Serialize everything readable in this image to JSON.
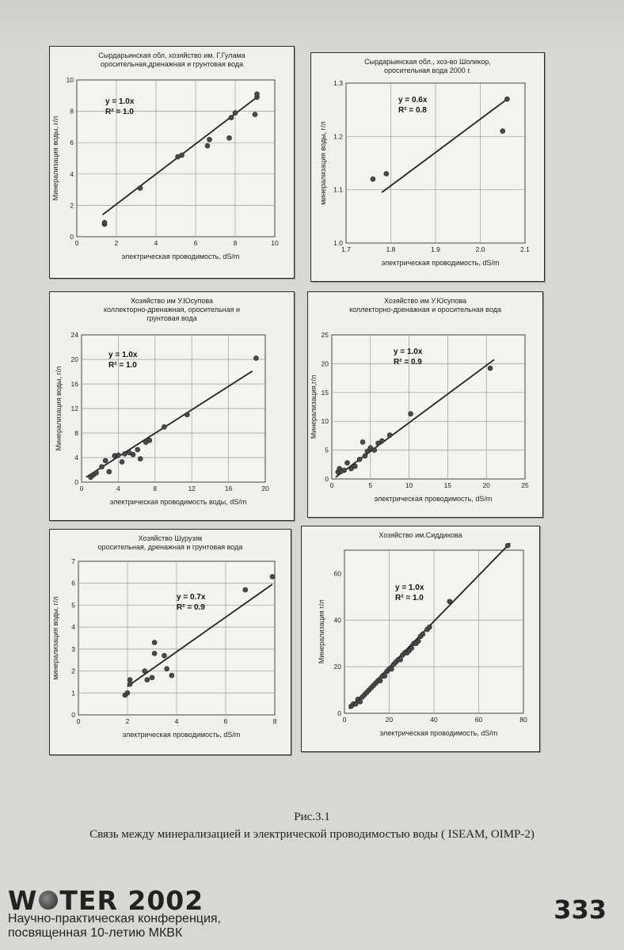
{
  "caption": {
    "number": "Рис.3.1",
    "text": "Связь между минерализацией и электрической проводимостью воды ( ISEAM, OIMP-2)"
  },
  "footer": {
    "logo_left": "W",
    "logo_right": "TER 2002",
    "line1": "Научно-практическая конференция,",
    "line2": "посвященная 10-летию МКВК",
    "page_number": "333"
  },
  "chart_data": [
    {
      "type": "scatter",
      "title": [
        "Сырдарьинская обл, хозяйство им. Г.Гулама",
        "оросительная,дренажная и грунтовая вода"
      ],
      "xlabel": "электрическая проводимость, dS/m",
      "ylabel": "Минерализация воды, г/л",
      "xlim": [
        0,
        10
      ],
      "ylim": [
        0,
        10
      ],
      "xticks": [
        "0",
        "2",
        "4",
        "6",
        "8",
        "10"
      ],
      "yticks": [
        "0",
        "2",
        "4",
        "6",
        "8",
        "10"
      ],
      "grid": true,
      "equation": "y = 1.0x",
      "r2": "R² = 1.0",
      "trendline": [
        [
          1.3,
          1.4
        ],
        [
          9.1,
          8.9
        ]
      ],
      "points": [
        [
          1.4,
          0.8
        ],
        [
          1.4,
          0.9
        ],
        [
          3.2,
          3.1
        ],
        [
          5.1,
          5.1
        ],
        [
          5.3,
          5.2
        ],
        [
          6.6,
          5.8
        ],
        [
          6.7,
          6.2
        ],
        [
          7.7,
          6.3
        ],
        [
          7.8,
          7.6
        ],
        [
          8.0,
          7.9
        ],
        [
          9.0,
          7.8
        ],
        [
          9.1,
          8.9
        ],
        [
          9.1,
          9.1
        ]
      ]
    },
    {
      "type": "scatter",
      "title": [
        "Сырдарьинская обл., хоз-во Шоликор,",
        "оросительная вода 2000 г."
      ],
      "xlabel": "электрическая проводимость, dS/m",
      "ylabel": "минерализация воды, г/л",
      "xlim": [
        1.7,
        2.1
      ],
      "ylim": [
        1.0,
        1.3
      ],
      "xticks": [
        "1.7",
        "1.8",
        "1.9",
        "2.0",
        "2.1"
      ],
      "yticks": [
        "1.0",
        "1.1",
        "1.2",
        "1.3"
      ],
      "grid": true,
      "equation": "y = 0.6x",
      "r2": "R² = 0.8",
      "trendline": [
        [
          1.78,
          1.095
        ],
        [
          2.06,
          1.27
        ]
      ],
      "points": [
        [
          1.76,
          1.12
        ],
        [
          1.79,
          1.13
        ],
        [
          2.05,
          1.21
        ],
        [
          2.06,
          1.27
        ]
      ]
    },
    {
      "type": "scatter",
      "title": [
        "Хозяйство им У.Юсупова",
        "коллекторно-дренажная, оросительная и",
        "грунтовая вода"
      ],
      "xlabel": "электрическая проводимость воды, dS/m",
      "ylabel": "Минерализация воды, г/л",
      "xlim": [
        0,
        20
      ],
      "ylim": [
        0,
        24
      ],
      "xticks": [
        "0",
        "4",
        "8",
        "12",
        "16",
        "20"
      ],
      "yticks": [
        "0",
        "4",
        "8",
        "12",
        "16",
        "20",
        "24"
      ],
      "grid": true,
      "equation": "y = 1.0x",
      "r2": "R² = 1.0",
      "trendline": [
        [
          0.5,
          0.8
        ],
        [
          18.6,
          18.1
        ]
      ],
      "points": [
        [
          1.0,
          0.8
        ],
        [
          1.3,
          1.2
        ],
        [
          1.6,
          1.5
        ],
        [
          2.2,
          2.5
        ],
        [
          2.6,
          3.5
        ],
        [
          3.0,
          1.7
        ],
        [
          3.6,
          4.3
        ],
        [
          4.0,
          4.4
        ],
        [
          4.4,
          3.3
        ],
        [
          4.7,
          4.6
        ],
        [
          5.2,
          4.8
        ],
        [
          5.6,
          4.5
        ],
        [
          6.1,
          5.3
        ],
        [
          6.4,
          3.8
        ],
        [
          7.0,
          6.5
        ],
        [
          7.4,
          6.8
        ],
        [
          9.0,
          9.0
        ],
        [
          11.5,
          11.0
        ],
        [
          19.0,
          20.2
        ]
      ]
    },
    {
      "type": "scatter",
      "title": [
        "Хозяйство им У.Юсупова",
        "коллекторно-дренажная и оросительная вода"
      ],
      "xlabel": "электрическая проводимость, dS/m",
      "ylabel": "Минерализация,г/л",
      "xlim": [
        0,
        25
      ],
      "ylim": [
        0,
        25
      ],
      "xticks": [
        "0",
        "5",
        "10",
        "15",
        "20",
        "25"
      ],
      "yticks": [
        "0",
        "5",
        "10",
        "15",
        "20",
        "25"
      ],
      "grid": true,
      "equation": "y = 1.0x",
      "r2": "R² = 0.9",
      "trendline": [
        [
          0.5,
          0.3
        ],
        [
          21.0,
          20.7
        ]
      ],
      "points": [
        [
          0.8,
          1.2
        ],
        [
          1.0,
          1.8
        ],
        [
          1.2,
          1.3
        ],
        [
          1.6,
          1.5
        ],
        [
          2.0,
          2.8
        ],
        [
          2.5,
          1.8
        ],
        [
          3.0,
          2.2
        ],
        [
          3.6,
          3.4
        ],
        [
          4.0,
          6.4
        ],
        [
          4.3,
          4.0
        ],
        [
          4.6,
          4.8
        ],
        [
          5.0,
          5.4
        ],
        [
          5.5,
          5.0
        ],
        [
          6.0,
          6.2
        ],
        [
          6.5,
          6.6
        ],
        [
          7.5,
          7.6
        ],
        [
          10.2,
          11.3
        ],
        [
          20.5,
          19.2
        ]
      ]
    },
    {
      "type": "scatter",
      "title": [
        "Хозяйство Шурузяк",
        "оросительная, дренажная и грунтовая вода"
      ],
      "xlabel": "электрическая проводимость, dS/m",
      "ylabel": "минерализация воды, г/л",
      "xlim": [
        0,
        8
      ],
      "ylim": [
        0,
        7
      ],
      "xticks": [
        "0",
        "2",
        "4",
        "6",
        "8"
      ],
      "yticks": [
        "0",
        "1",
        "2",
        "3",
        "4",
        "5",
        "6",
        "7"
      ],
      "grid": true,
      "equation": "y = 0.7x",
      "r2": "R² = 0.9",
      "trendline": [
        [
          2.0,
          1.3
        ],
        [
          7.9,
          5.95
        ]
      ],
      "points": [
        [
          1.9,
          0.9
        ],
        [
          2.0,
          1.0
        ],
        [
          2.1,
          1.4
        ],
        [
          2.1,
          1.6
        ],
        [
          2.7,
          2.0
        ],
        [
          2.8,
          1.6
        ],
        [
          3.0,
          1.7
        ],
        [
          3.1,
          2.8
        ],
        [
          3.1,
          3.3
        ],
        [
          3.5,
          2.7
        ],
        [
          3.6,
          2.1
        ],
        [
          3.8,
          1.8
        ],
        [
          6.8,
          5.7
        ],
        [
          7.9,
          6.3
        ]
      ]
    },
    {
      "type": "scatter",
      "title": [
        "Хозяйство им.Сиддикова"
      ],
      "xlabel": "электрическая проводимость, dS/m",
      "ylabel": "Минерализация г/л",
      "xlim": [
        0,
        80
      ],
      "ylim": [
        0,
        70
      ],
      "xticks": [
        "0",
        "20",
        "40",
        "60",
        "80"
      ],
      "yticks": [
        "0",
        "20",
        "40",
        "60"
      ],
      "grid": true,
      "equation": "y = 1.0x",
      "r2": "R² = 1.0",
      "trendline": [
        [
          2,
          2
        ],
        [
          74,
          73
        ]
      ],
      "points": [
        [
          3,
          3
        ],
        [
          4,
          4
        ],
        [
          5,
          4
        ],
        [
          6,
          6
        ],
        [
          7,
          5
        ],
        [
          8,
          7
        ],
        [
          9,
          8
        ],
        [
          10,
          9
        ],
        [
          11,
          10
        ],
        [
          12,
          11
        ],
        [
          13,
          12
        ],
        [
          14,
          13
        ],
        [
          15,
          14
        ],
        [
          16,
          14
        ],
        [
          17,
          16
        ],
        [
          18,
          16
        ],
        [
          19,
          18
        ],
        [
          20,
          19
        ],
        [
          21,
          19
        ],
        [
          22,
          21
        ],
        [
          23,
          22
        ],
        [
          24,
          23
        ],
        [
          25,
          23
        ],
        [
          26,
          25
        ],
        [
          27,
          26
        ],
        [
          28,
          26
        ],
        [
          29,
          27
        ],
        [
          30,
          28
        ],
        [
          31,
          30
        ],
        [
          32,
          30
        ],
        [
          33,
          31
        ],
        [
          34,
          33
        ],
        [
          35,
          34
        ],
        [
          37,
          36
        ],
        [
          38,
          37
        ],
        [
          47,
          48
        ],
        [
          73,
          72
        ]
      ]
    }
  ]
}
